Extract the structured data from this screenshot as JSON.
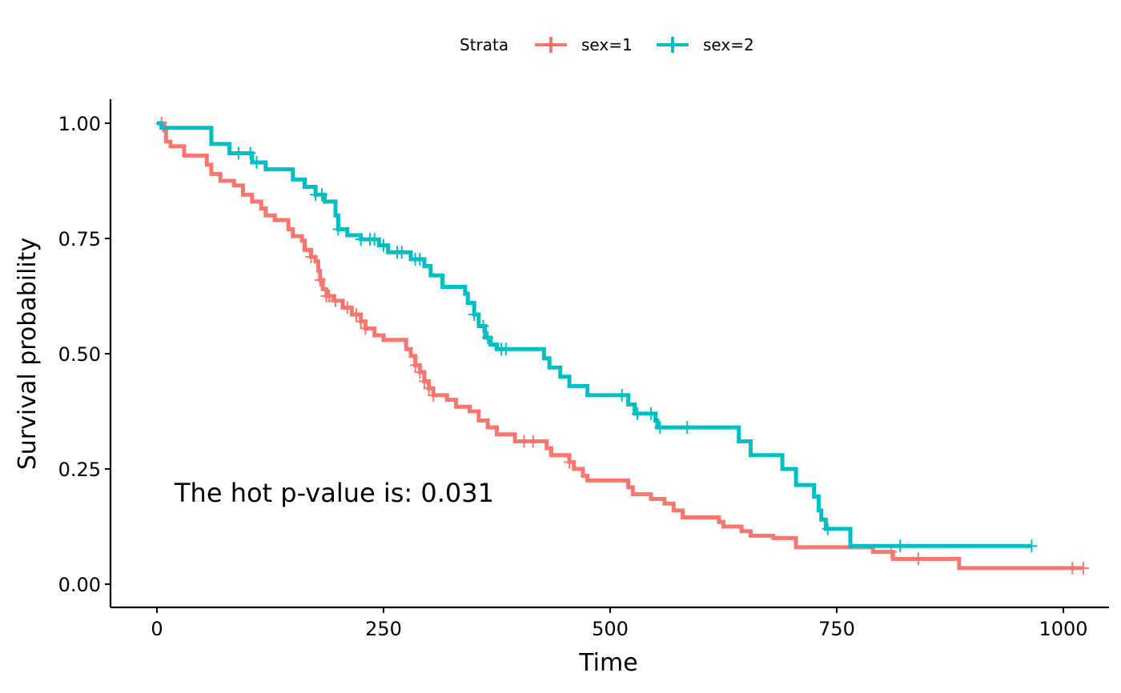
{
  "chart_data": {
    "type": "line",
    "subtype": "kaplan-meier step",
    "xlabel": "Time",
    "ylabel": "Survival probability",
    "xlim": [
      0,
      1000
    ],
    "ylim": [
      0,
      1
    ],
    "xticks": [
      0,
      250,
      500,
      750,
      1000
    ],
    "xtick_labels": [
      "0",
      "250",
      "500",
      "750",
      "1000"
    ],
    "yticks": [
      0,
      0.25,
      0.5,
      0.75,
      1
    ],
    "ytick_labels": [
      "0.00",
      "0.25",
      "0.50",
      "0.75",
      "1.00"
    ],
    "grid": false,
    "legend": {
      "title": "Strata",
      "placement": "top"
    },
    "annotation": "The hot p-value is: 0.031",
    "series": [
      {
        "name": "sex=1",
        "color": "#F8766D",
        "steps": [
          [
            0,
            1.0
          ],
          [
            8,
            0.985
          ],
          [
            10,
            0.96
          ],
          [
            15,
            0.95
          ],
          [
            30,
            0.93
          ],
          [
            55,
            0.91
          ],
          [
            60,
            0.89
          ],
          [
            70,
            0.875
          ],
          [
            85,
            0.865
          ],
          [
            95,
            0.845
          ],
          [
            105,
            0.83
          ],
          [
            115,
            0.815
          ],
          [
            120,
            0.8
          ],
          [
            130,
            0.79
          ],
          [
            145,
            0.77
          ],
          [
            150,
            0.755
          ],
          [
            160,
            0.745
          ],
          [
            163,
            0.725
          ],
          [
            170,
            0.71
          ],
          [
            175,
            0.7
          ],
          [
            178,
            0.68
          ],
          [
            180,
            0.66
          ],
          [
            183,
            0.64
          ],
          [
            187,
            0.625
          ],
          [
            195,
            0.615
          ],
          [
            205,
            0.6
          ],
          [
            215,
            0.585
          ],
          [
            225,
            0.57
          ],
          [
            230,
            0.555
          ],
          [
            240,
            0.54
          ],
          [
            250,
            0.53
          ],
          [
            275,
            0.51
          ],
          [
            280,
            0.495
          ],
          [
            285,
            0.475
          ],
          [
            290,
            0.46
          ],
          [
            295,
            0.44
          ],
          [
            300,
            0.425
          ],
          [
            305,
            0.41
          ],
          [
            320,
            0.4
          ],
          [
            330,
            0.385
          ],
          [
            345,
            0.375
          ],
          [
            355,
            0.355
          ],
          [
            365,
            0.34
          ],
          [
            375,
            0.325
          ],
          [
            395,
            0.31
          ],
          [
            430,
            0.295
          ],
          [
            435,
            0.28
          ],
          [
            455,
            0.265
          ],
          [
            460,
            0.25
          ],
          [
            470,
            0.235
          ],
          [
            475,
            0.225
          ],
          [
            520,
            0.21
          ],
          [
            525,
            0.195
          ],
          [
            545,
            0.185
          ],
          [
            560,
            0.175
          ],
          [
            570,
            0.16
          ],
          [
            580,
            0.145
          ],
          [
            620,
            0.135
          ],
          [
            625,
            0.125
          ],
          [
            645,
            0.115
          ],
          [
            655,
            0.105
          ],
          [
            680,
            0.1
          ],
          [
            705,
            0.08
          ],
          [
            790,
            0.07
          ],
          [
            812,
            0.055
          ],
          [
            885,
            0.035
          ]
        ],
        "end": 1022,
        "censored": [
          5,
          170,
          180,
          187,
          190,
          197,
          210,
          220,
          225,
          230,
          285,
          290,
          295,
          300,
          305,
          405,
          415,
          455,
          810,
          840,
          1010,
          1022
        ]
      },
      {
        "name": "sex=2",
        "color": "#00BFC4",
        "steps": [
          [
            0,
            1.0
          ],
          [
            5,
            0.99
          ],
          [
            60,
            0.955
          ],
          [
            80,
            0.935
          ],
          [
            105,
            0.915
          ],
          [
            120,
            0.9
          ],
          [
            150,
            0.878
          ],
          [
            163,
            0.862
          ],
          [
            175,
            0.845
          ],
          [
            185,
            0.83
          ],
          [
            197,
            0.8
          ],
          [
            200,
            0.77
          ],
          [
            210,
            0.757
          ],
          [
            225,
            0.748
          ],
          [
            245,
            0.735
          ],
          [
            255,
            0.72
          ],
          [
            280,
            0.705
          ],
          [
            295,
            0.69
          ],
          [
            302,
            0.67
          ],
          [
            315,
            0.645
          ],
          [
            340,
            0.63
          ],
          [
            343,
            0.61
          ],
          [
            350,
            0.585
          ],
          [
            355,
            0.56
          ],
          [
            362,
            0.535
          ],
          [
            368,
            0.52
          ],
          [
            375,
            0.51
          ],
          [
            427,
            0.49
          ],
          [
            433,
            0.47
          ],
          [
            445,
            0.45
          ],
          [
            455,
            0.43
          ],
          [
            475,
            0.41
          ],
          [
            520,
            0.39
          ],
          [
            527,
            0.37
          ],
          [
            550,
            0.355
          ],
          [
            552,
            0.34
          ],
          [
            642,
            0.31
          ],
          [
            655,
            0.28
          ],
          [
            690,
            0.25
          ],
          [
            705,
            0.215
          ],
          [
            725,
            0.19
          ],
          [
            730,
            0.16
          ],
          [
            733,
            0.14
          ],
          [
            738,
            0.12
          ],
          [
            765,
            0.083
          ]
        ],
        "end": 965,
        "censored": [
          90,
          103,
          110,
          175,
          182,
          200,
          225,
          235,
          240,
          250,
          265,
          270,
          285,
          290,
          350,
          360,
          365,
          380,
          385,
          513,
          530,
          545,
          555,
          585,
          740,
          820,
          965
        ]
      }
    ]
  }
}
